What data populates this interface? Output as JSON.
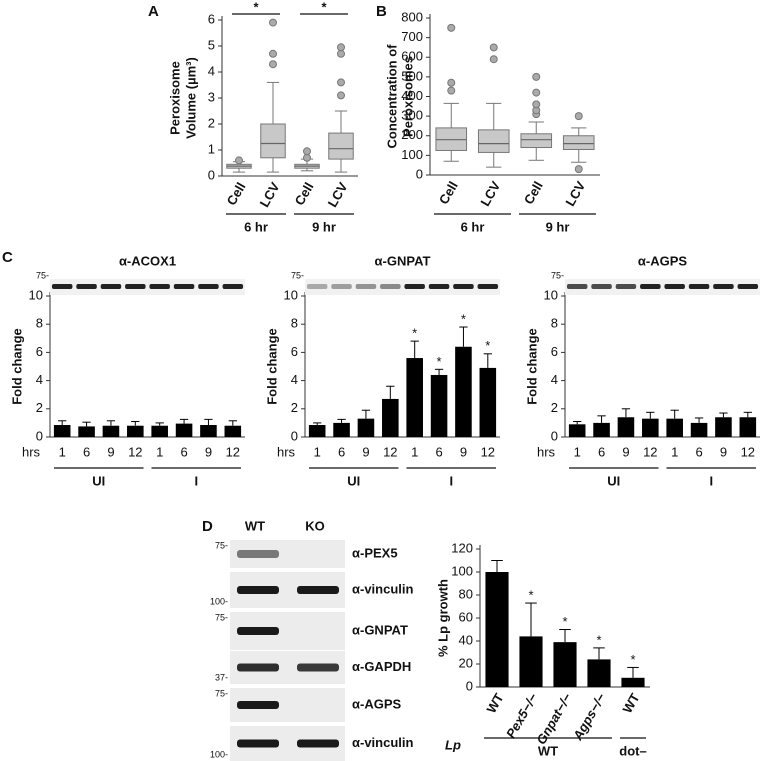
{
  "panels": [
    "A",
    "B",
    "C",
    "D"
  ],
  "chart_data": [
    {
      "type": "box",
      "ylabel": [
        "Peroxisome",
        "Volume (µm³)"
      ],
      "categories": [
        "Cell",
        "LCV",
        "Cell",
        "LCV"
      ],
      "groups": [
        {
          "label": "6 hr",
          "size": 2
        },
        {
          "label": "9 hr",
          "size": 2
        }
      ],
      "significance": [
        "*",
        "*"
      ],
      "ylim": [
        0,
        6
      ],
      "yticks": [
        0,
        1,
        2,
        3,
        4,
        5,
        6
      ],
      "boxes": [
        {
          "whisker_low": 0.15,
          "q1": 0.3,
          "median": 0.38,
          "q3": 0.45,
          "whisker_high": 0.55,
          "outliers": [
            0.6
          ]
        },
        {
          "whisker_low": 0.15,
          "q1": 0.7,
          "median": 1.25,
          "q3": 2.0,
          "whisker_high": 3.6,
          "outliers": [
            4.3,
            4.7,
            5.9
          ]
        },
        {
          "whisker_low": 0.2,
          "q1": 0.3,
          "median": 0.38,
          "q3": 0.45,
          "whisker_high": 0.65,
          "outliers": [
            0.7,
            0.95
          ]
        },
        {
          "whisker_low": 0.15,
          "q1": 0.65,
          "median": 1.05,
          "q3": 1.65,
          "whisker_high": 2.5,
          "outliers": [
            3.1,
            3.6,
            4.7,
            4.95
          ]
        }
      ],
      "color": "#c8c8c8"
    },
    {
      "type": "box",
      "ylabel": [
        "Concentration of",
        "Peroxisomes"
      ],
      "categories": [
        "Cell",
        "LCV",
        "Cell",
        "LCV"
      ],
      "groups": [
        {
          "label": "6 hr",
          "size": 2
        },
        {
          "label": "9 hr",
          "size": 2
        }
      ],
      "ylim": [
        0,
        800
      ],
      "yticks": [
        0,
        100,
        200,
        300,
        400,
        500,
        600,
        700,
        800
      ],
      "boxes": [
        {
          "whisker_low": 70,
          "q1": 125,
          "median": 180,
          "q3": 240,
          "whisker_high": 365,
          "outliers": [
            430,
            470,
            750
          ]
        },
        {
          "whisker_low": 40,
          "q1": 115,
          "median": 160,
          "q3": 230,
          "whisker_high": 365,
          "outliers": [
            590,
            650
          ]
        },
        {
          "whisker_low": 75,
          "q1": 140,
          "median": 180,
          "q3": 210,
          "whisker_high": 270,
          "outliers": [
            310,
            330,
            360,
            420,
            500
          ]
        },
        {
          "whisker_low": 65,
          "q1": 130,
          "median": 160,
          "q3": 200,
          "whisker_high": 240,
          "outliers": [
            30,
            300
          ]
        }
      ],
      "color": "#c8c8c8"
    },
    {
      "type": "bar",
      "title": "α-ACOX1",
      "marker": "75-",
      "ylabel": [
        "Fold change"
      ],
      "x_prefix": "hrs",
      "categories": [
        "1",
        "6",
        "9",
        "12",
        "1",
        "6",
        "9",
        "12"
      ],
      "groups": [
        {
          "label": "UI",
          "size": 4
        },
        {
          "label": "I",
          "size": 4
        }
      ],
      "values": [
        0.85,
        0.75,
        0.8,
        0.8,
        0.8,
        0.95,
        0.85,
        0.8
      ],
      "errors": [
        0.3,
        0.3,
        0.35,
        0.3,
        0.2,
        0.3,
        0.4,
        0.35
      ],
      "ylim": [
        0,
        10
      ],
      "yticks": [
        0,
        2,
        4,
        6,
        8,
        10
      ],
      "color": "#000000"
    },
    {
      "type": "bar",
      "title": "α-GNPAT",
      "marker": "75-",
      "ylabel": [
        "Fold change"
      ],
      "x_prefix": "hrs",
      "categories": [
        "1",
        "6",
        "9",
        "12",
        "1",
        "6",
        "9",
        "12"
      ],
      "groups": [
        {
          "label": "UI",
          "size": 4
        },
        {
          "label": "I",
          "size": 4
        }
      ],
      "values": [
        0.85,
        1.0,
        1.3,
        2.7,
        5.6,
        4.4,
        6.4,
        4.9
      ],
      "errors": [
        0.15,
        0.25,
        0.6,
        0.9,
        1.2,
        0.4,
        1.4,
        1.0
      ],
      "stars": [
        null,
        null,
        null,
        null,
        "*",
        "*",
        "*",
        "*"
      ],
      "ylim": [
        0,
        10
      ],
      "yticks": [
        0,
        2,
        4,
        6,
        8,
        10
      ],
      "color": "#000000"
    },
    {
      "type": "bar",
      "title": "α-AGPS",
      "marker": "75-",
      "ylabel": [
        "Fold change"
      ],
      "x_prefix": "hrs",
      "categories": [
        "1",
        "6",
        "9",
        "12",
        "1",
        "6",
        "9",
        "12"
      ],
      "groups": [
        {
          "label": "UI",
          "size": 4
        },
        {
          "label": "I",
          "size": 4
        }
      ],
      "values": [
        0.9,
        1.0,
        1.4,
        1.3,
        1.3,
        1.0,
        1.4,
        1.4
      ],
      "errors": [
        0.2,
        0.5,
        0.6,
        0.45,
        0.6,
        0.35,
        0.3,
        0.35
      ],
      "ylim": [
        0,
        10
      ],
      "yticks": [
        0,
        2,
        4,
        6,
        8,
        10
      ],
      "color": "#000000"
    },
    {
      "type": "bar",
      "ylabel": [
        "% Lp growth"
      ],
      "x_prefix": "Lp",
      "categories": [
        "WT",
        "Pex5−/−",
        "Gnpat−/−",
        "Agps−/−",
        "WT"
      ],
      "category_style": [
        "normal",
        "italic",
        "italic",
        "italic",
        "normal"
      ],
      "groups": [
        {
          "label": "WT",
          "size": 4
        },
        {
          "label": "dot–",
          "size": 1
        }
      ],
      "values": [
        100,
        44,
        39,
        24,
        8
      ],
      "errors": [
        10,
        29,
        11,
        10,
        9
      ],
      "stars": [
        null,
        "*",
        "*",
        "*",
        "*"
      ],
      "ylim": [
        0,
        120
      ],
      "yticks": [
        0,
        20,
        40,
        60,
        80,
        100,
        120
      ],
      "color": "#000000"
    }
  ],
  "blot": {
    "columns": [
      "WT",
      "KO"
    ],
    "rows": [
      {
        "label": "α-PEX5",
        "marker": "75-"
      },
      {
        "label": "α-vinculin",
        "marker": "100-"
      },
      {
        "label": "α-GNPAT",
        "marker": "75-"
      },
      {
        "label": "α-GAPDH",
        "marker": "37-"
      },
      {
        "label": "α-AGPS",
        "marker": "75-"
      },
      {
        "label": "α-vinculin",
        "marker": "100-"
      }
    ]
  }
}
